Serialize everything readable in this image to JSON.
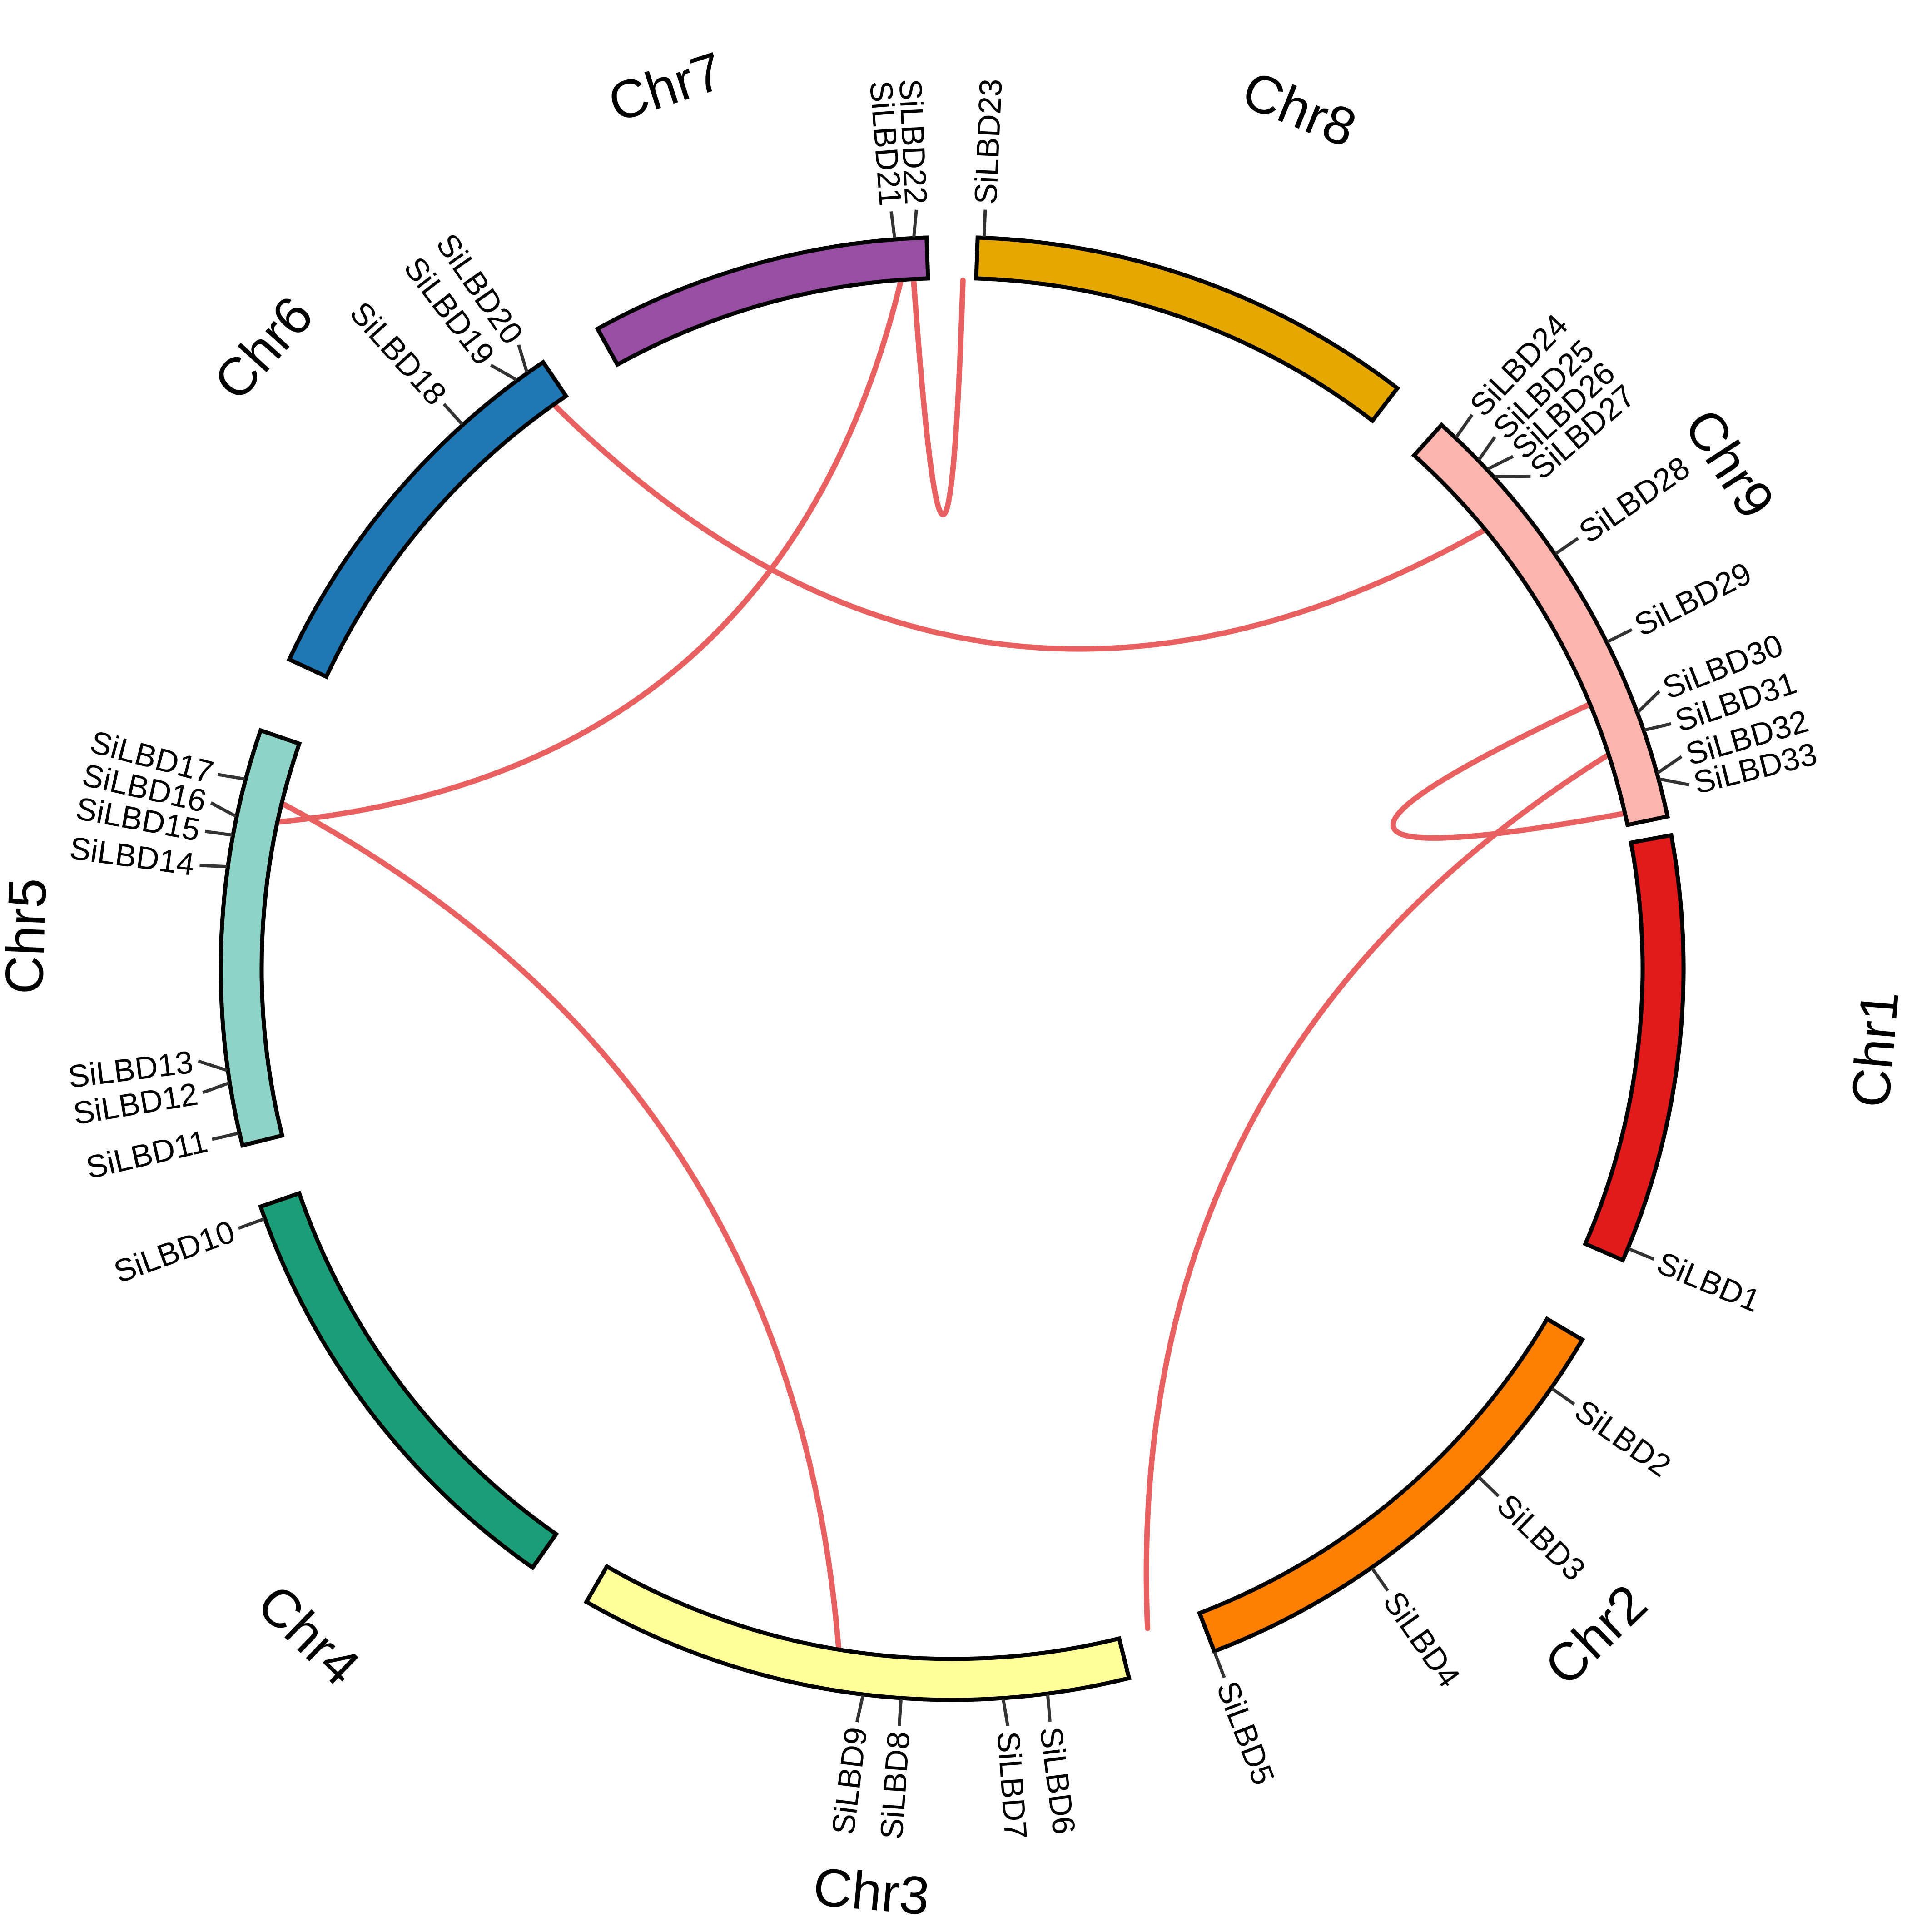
{
  "diagram": {
    "type": "circos-collinearity",
    "link_color": "#E8605F",
    "chromosomes": [
      {
        "name": "Chr1",
        "color": "#E31A1C",
        "genes": [
          {
            "name": "SiLBD1"
          }
        ]
      },
      {
        "name": "Chr2",
        "color": "#FF7F00",
        "genes": [
          {
            "name": "SiLBD2"
          },
          {
            "name": "SiLBD3"
          },
          {
            "name": "SiLBD4"
          },
          {
            "name": "SiLBD5"
          }
        ]
      },
      {
        "name": "Chr3",
        "color": "#FFFF99",
        "genes": [
          {
            "name": "SiLBD6"
          },
          {
            "name": "SiLBD7"
          },
          {
            "name": "SiLBD8"
          },
          {
            "name": "SiLBD9"
          }
        ]
      },
      {
        "name": "Chr4",
        "color": "#1B9E77",
        "genes": [
          {
            "name": "SiLBD10"
          }
        ]
      },
      {
        "name": "Chr5",
        "color": "#8DD3C7",
        "genes": [
          {
            "name": "SiLBD11"
          },
          {
            "name": "SiLBD12"
          },
          {
            "name": "SiLBD13"
          },
          {
            "name": "SiLBD14"
          },
          {
            "name": "SiLBD15"
          },
          {
            "name": "SiLBD16"
          },
          {
            "name": "SiLBD17"
          }
        ]
      },
      {
        "name": "Chr6",
        "color": "#1F78B4",
        "genes": [
          {
            "name": "SiLBD18"
          },
          {
            "name": "SiLBD19"
          },
          {
            "name": "SiLBD20"
          }
        ]
      },
      {
        "name": "Chr7",
        "color": "#984EA3",
        "genes": [
          {
            "name": "SiLBD21"
          },
          {
            "name": "SiLBD22"
          }
        ]
      },
      {
        "name": "Chr8",
        "color": "#E6A800",
        "genes": [
          {
            "name": "SiLBD23"
          }
        ]
      },
      {
        "name": "Chr9",
        "color": "#FBB4AE",
        "genes": [
          {
            "name": "SiLBD24"
          },
          {
            "name": "SiLBD25"
          },
          {
            "name": "SiLBD26"
          },
          {
            "name": "SiLBD27"
          },
          {
            "name": "SiLBD28"
          },
          {
            "name": "SiLBD29"
          },
          {
            "name": "SiLBD30"
          },
          {
            "name": "SiLBD31"
          },
          {
            "name": "SiLBD32"
          },
          {
            "name": "SiLBD33"
          }
        ]
      }
    ],
    "links": [
      {
        "from": "SiLBD22",
        "to": "SiLBD23"
      },
      {
        "from": "SiLBD19",
        "to": "SiLBD24"
      },
      {
        "from": "SiLBD21",
        "to": "SiLBD15"
      },
      {
        "from": "SiLBD16",
        "to": "SiLBD8"
      },
      {
        "from": "SiLBD28",
        "to": "SiLBD32"
      },
      {
        "from": "SiLBD30",
        "to": "SiLBD5"
      }
    ]
  }
}
